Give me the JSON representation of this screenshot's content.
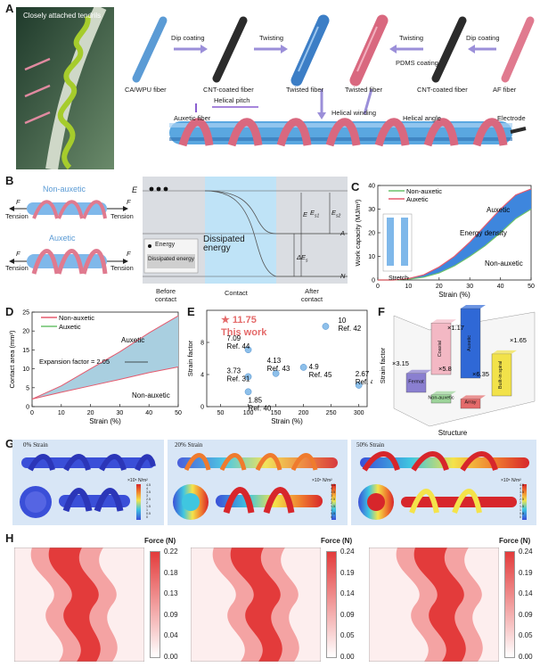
{
  "panel_letters": [
    "A",
    "B",
    "C",
    "D",
    "E",
    "F",
    "G",
    "H"
  ],
  "panel_a": {
    "tendril_label": "Closely attached tendrils",
    "fibers": [
      "CA/WPU fiber",
      "CNT-coated fiber",
      "Twisted fiber",
      "Twisted fiber",
      "CNT-coated fiber",
      "AF fiber"
    ],
    "steps": [
      "Dip coating",
      "Twisting",
      "Twisting",
      "PDMS coating",
      "Dip coating"
    ],
    "bottom_labels": [
      "Auxetic fiber",
      "Helical pitch",
      "Helical winding",
      "Helical angle",
      "Electrode"
    ],
    "colors": {
      "blue_fiber": "#5b9bd5",
      "pink_fiber": "#e07a8f",
      "cnt_fiber": "#3a3a3a",
      "arrow": "#9b8fd9"
    }
  },
  "panel_b": {
    "nonauxetic_label": "Non-auxetic",
    "auxetic_label": "Auxetic",
    "force_label": "F",
    "tension_label": "Tension",
    "energy_axis": "E",
    "legend_energy": "Energy",
    "legend_dissipated": "Dissipated energy",
    "dissipated_label": "Dissipated energy",
    "phases": [
      "Before contact",
      "Contact",
      "After contact"
    ],
    "levels": [
      "E",
      "A",
      "N"
    ],
    "markers": [
      "E",
      "s1",
      "E",
      "s2",
      "ΔE",
      "s"
    ]
  },
  "chart_data": [
    {
      "id": "C",
      "type": "area",
      "xlabel": "Strain (%)",
      "ylabel": "Work capacity (MJ/m³)",
      "xlim": [
        0,
        50
      ],
      "ylim": [
        0,
        40
      ],
      "xticks": [
        0,
        10,
        20,
        30,
        40,
        50
      ],
      "yticks": [
        0,
        10,
        20,
        30,
        40
      ],
      "legend": [
        "Non-auxetic",
        "Auxetic"
      ],
      "annotations": [
        "Auxetic",
        "Energy density",
        "Non-auxetic",
        "Stretch"
      ],
      "x": [
        0,
        5,
        10,
        15,
        20,
        25,
        30,
        35,
        40,
        45,
        50
      ],
      "series": [
        {
          "name": "Non-auxetic",
          "values": [
            0,
            0,
            0.3,
            1.2,
            3,
            6,
            10,
            14.5,
            20,
            26,
            30
          ]
        },
        {
          "name": "Auxetic",
          "values": [
            0,
            0,
            0.6,
            2.2,
            5.5,
            10,
            16,
            23,
            30,
            36,
            38.5
          ]
        }
      ]
    },
    {
      "id": "D",
      "type": "area",
      "xlabel": "Strain (%)",
      "ylabel": "Contact area (mm²)",
      "xlim": [
        0,
        50
      ],
      "ylim": [
        0,
        25
      ],
      "xticks": [
        0,
        10,
        20,
        30,
        40,
        50
      ],
      "yticks": [
        0,
        5,
        10,
        15,
        20,
        25
      ],
      "legend": [
        "Non-auxetic",
        "Auxetic"
      ],
      "annotations": [
        "Auxetic",
        "Expansion factor = 2.05",
        "Non-auxetic"
      ],
      "x": [
        0,
        10,
        20,
        30,
        40,
        50
      ],
      "series": [
        {
          "name": "Non-auxetic",
          "values": [
            2,
            3.8,
            5.5,
            7.2,
            9,
            10.5
          ]
        },
        {
          "name": "Auxetic",
          "values": [
            2,
            5.5,
            10,
            14.5,
            19.5,
            24
          ]
        }
      ]
    },
    {
      "id": "E",
      "type": "scatter",
      "xlabel": "Strain (%)",
      "ylabel": "Strain factor",
      "xlim": [
        25,
        315
      ],
      "ylim": [
        0,
        12
      ],
      "xticks": [
        50,
        100,
        150,
        200,
        250,
        300
      ],
      "yticks": [
        0,
        4,
        8
      ],
      "highlight": {
        "value": "11.75",
        "label": "This work"
      },
      "points": [
        {
          "x": 100,
          "y": 7.09,
          "label": "7.09",
          "ref": "Ref. 44"
        },
        {
          "x": 100,
          "y": 3.73,
          "label": "3.73",
          "ref": "Ref. 31"
        },
        {
          "x": 100,
          "y": 1.85,
          "label": "1.85",
          "ref": "Ref. 40"
        },
        {
          "x": 150,
          "y": 4.13,
          "label": "4.13",
          "ref": "Ref. 43"
        },
        {
          "x": 200,
          "y": 4.9,
          "label": "4.9",
          "ref": "Ref. 45"
        },
        {
          "x": 240,
          "y": 10,
          "label": "10",
          "ref": "Ref. 42"
        },
        {
          "x": 300,
          "y": 2.67,
          "label": "2.67",
          "ref": "Ref. 41"
        }
      ]
    },
    {
      "id": "F",
      "type": "bar",
      "xlabel": "Structure",
      "ylabel": "Strain factor",
      "categories": [
        "Fermat",
        "Non-auxetic",
        "Coaxial",
        "Array",
        "Auxetic",
        "Built-in spiral"
      ],
      "values": [
        3.2,
        1.4,
        8.7,
        1.6,
        11.75,
        7.1
      ],
      "factors": [
        "×3.15",
        "×5.8",
        "×1.17",
        "×6.35",
        "×1.65"
      ],
      "colors": [
        "#8a7fd0",
        "#9dd49a",
        "#f3b8c4",
        "#e46a6a",
        "#2f68d6",
        "#f2e24a"
      ]
    }
  ],
  "panel_g": {
    "titles": [
      "0% Strain",
      "20% Strain",
      "50% Strain"
    ],
    "colorbar_unit": "×10⁵ N/m²",
    "colorbar_ticks": [
      "4.5",
      "4",
      "3.5",
      "3",
      "2.5",
      "2",
      "1.5",
      "1",
      "0.5",
      "0"
    ]
  },
  "panel_h": {
    "colorbar_title": "Force (N)",
    "maps": [
      {
        "ticks": [
          "0.22",
          "0.18",
          "0.13",
          "0.09",
          "0.04",
          "0.00"
        ]
      },
      {
        "ticks": [
          "0.24",
          "0.19",
          "0.14",
          "0.09",
          "0.05",
          "0.00"
        ]
      },
      {
        "ticks": [
          "0.24",
          "0.19",
          "0.14",
          "0.09",
          "0.05",
          "0.00"
        ]
      }
    ]
  }
}
